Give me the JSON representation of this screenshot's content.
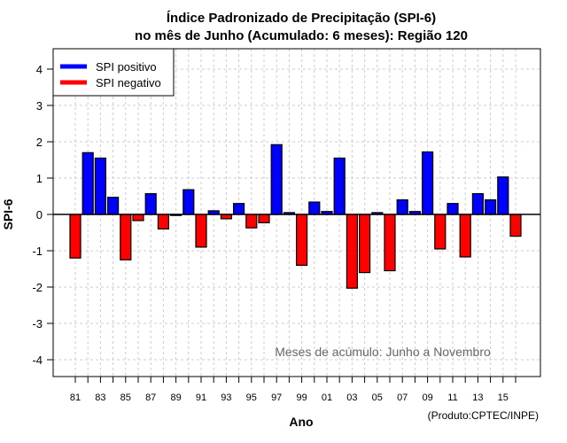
{
  "chart_data": {
    "type": "bar",
    "title": "Índice Padronizado de Precipitação (SPI-6)",
    "subtitle": "no mês de Junho (Acumulado: 6 meses): Região 120",
    "xlabel": "Ano",
    "ylabel": "SPI-6",
    "ylim": [
      -4.5,
      4.5
    ],
    "yticks": [
      "4",
      "3",
      "2",
      "1",
      "0",
      "-1",
      "-2",
      "-3",
      "-4"
    ],
    "ytick_values": [
      4,
      3,
      2,
      1,
      0,
      -1,
      -2,
      -3,
      -4
    ],
    "xtick_labels": [
      "81",
      "83",
      "85",
      "87",
      "89",
      "91",
      "93",
      "95",
      "97",
      "99",
      "01",
      "03",
      "05",
      "07",
      "09",
      "11",
      "13",
      "15"
    ],
    "categories": [
      1981,
      1982,
      1983,
      1984,
      1985,
      1986,
      1987,
      1988,
      1989,
      1990,
      1991,
      1992,
      1993,
      1994,
      1995,
      1996,
      1997,
      1998,
      1999,
      2000,
      2001,
      2002,
      2003,
      2004,
      2005,
      2006,
      2007,
      2008,
      2009,
      2010,
      2011,
      2012,
      2013,
      2014,
      2015,
      2016
    ],
    "values": [
      -1.2,
      1.7,
      1.55,
      0.47,
      -1.25,
      -0.17,
      0.57,
      -0.4,
      -0.03,
      0.68,
      -0.9,
      0.1,
      -0.12,
      0.3,
      -0.37,
      -0.23,
      1.92,
      0.05,
      -1.4,
      0.34,
      0.08,
      1.55,
      -2.03,
      -1.6,
      0.05,
      -1.55,
      0.4,
      0.08,
      1.72,
      -0.95,
      0.3,
      -1.17,
      0.57,
      0.4,
      1.03,
      -0.6
    ],
    "legend": [
      {
        "label": "SPI positivo",
        "color": "#0000ff"
      },
      {
        "label": "SPI negativo",
        "color": "#ff0000"
      }
    ],
    "legend_position": "top-left",
    "grid": true,
    "annotation": "Meses de acúmulo: Junho a Novembro",
    "credit": "(Produto:CPTEC/INPE)"
  }
}
